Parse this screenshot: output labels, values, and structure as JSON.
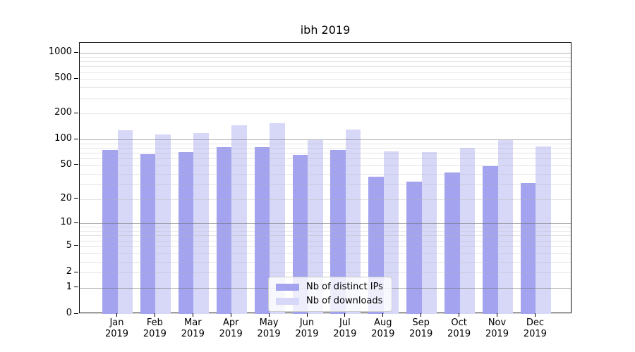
{
  "chart_data": {
    "type": "bar",
    "title": "ibh 2019",
    "categories": [
      "Jan 2019",
      "Feb 2019",
      "Mar 2019",
      "Apr 2019",
      "May 2019",
      "Jun 2019",
      "Jul 2019",
      "Aug 2019",
      "Sep 2019",
      "Oct 2019",
      "Nov 2019",
      "Dec 2019"
    ],
    "series": [
      {
        "name": "Nb of distinct IPs",
        "color": "#a3a3ef",
        "values": [
          76,
          68,
          72,
          82,
          81,
          66,
          76,
          37,
          32,
          41,
          49,
          31
        ]
      },
      {
        "name": "Nb of downloads",
        "color": "#d7d7f8",
        "values": [
          127,
          114,
          120,
          147,
          154,
          98,
          130,
          73,
          71,
          80,
          99,
          83
        ]
      }
    ],
    "yscale": "log1p",
    "yticks": [
      0,
      1,
      2,
      5,
      10,
      20,
      50,
      100,
      200,
      500,
      1000
    ],
    "ylim": [
      0,
      1300
    ],
    "grid": true,
    "grid_minor_ticks": [
      2,
      3,
      4,
      5,
      6,
      7,
      8,
      9,
      20,
      30,
      40,
      50,
      60,
      70,
      80,
      90,
      200,
      300,
      400,
      500,
      600,
      700,
      800,
      900
    ],
    "grid_major_ticks": [
      1,
      10,
      100,
      1000
    ],
    "legend_position": "lower center",
    "colors": {
      "axis": "#000000",
      "minor_grid": "#e6e6e6",
      "major_grid": "#a8a8a8"
    }
  }
}
